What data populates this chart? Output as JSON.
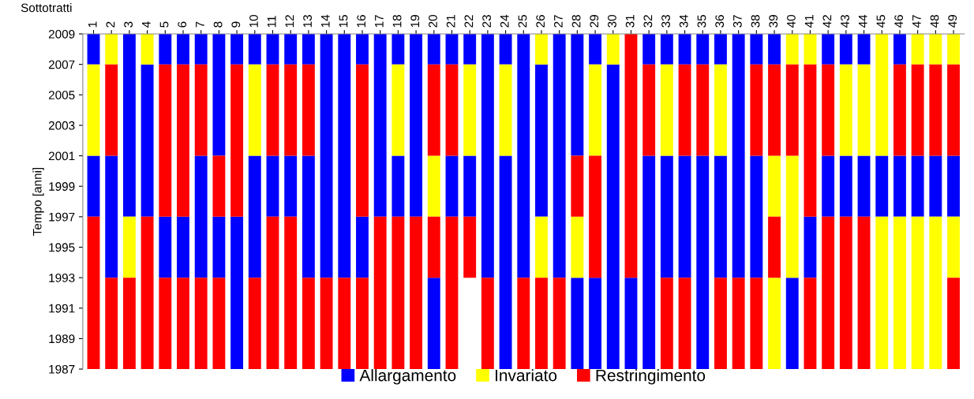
{
  "chart_data": {
    "type": "bar",
    "xlabel": "Sottotratti",
    "ylabel": "Tempo [anni]",
    "categories": [
      "1",
      "2",
      "3",
      "4",
      "5",
      "6",
      "7",
      "8",
      "9",
      "10",
      "11",
      "12",
      "13",
      "14",
      "15",
      "16",
      "17",
      "18",
      "19",
      "20",
      "21",
      "22",
      "23",
      "24",
      "25",
      "26",
      "27",
      "28",
      "29",
      "30",
      "31",
      "32",
      "33",
      "34",
      "35",
      "36",
      "37",
      "38",
      "39",
      "40",
      "41",
      "42",
      "43",
      "44",
      "45",
      "46",
      "47",
      "48",
      "49"
    ],
    "ylim": [
      1987,
      2009
    ],
    "yticks": [
      1987,
      1989,
      1991,
      1993,
      1995,
      1997,
      1999,
      2001,
      2003,
      2005,
      2007,
      2009
    ],
    "legend": "bottom",
    "series": [
      {
        "name": "Allargamento",
        "color": "#0000ff",
        "x": [
          "1",
          "1",
          "2",
          "3",
          "4",
          "5",
          "5",
          "6",
          "6",
          "7",
          "7",
          "8",
          "8",
          "9",
          "9",
          "10",
          "10",
          "11",
          "11",
          "12",
          "12",
          "13",
          "13",
          "14",
          "15",
          "16",
          "16",
          "17",
          "18",
          "18",
          "19",
          "20",
          "20",
          "21",
          "21",
          "22",
          "22",
          "23",
          "24",
          "24",
          "25",
          "26",
          "27",
          "28",
          "28",
          "29",
          "29",
          "30",
          "31",
          "32",
          "32",
          "33",
          "33",
          "34",
          "34",
          "35",
          "35",
          "36",
          "36",
          "37",
          "38",
          "38",
          "39",
          "40",
          "41",
          "42",
          "42",
          "43",
          "43",
          "44",
          "44",
          "45",
          "46",
          "46",
          "47",
          "48",
          "49"
        ],
        "base": [
          1997,
          2007,
          1993,
          1997,
          1997,
          1993,
          2007,
          1993,
          2007,
          1993,
          2007,
          1993,
          2001,
          1987,
          2007,
          1993,
          2007,
          1997,
          2007,
          1997,
          2007,
          1993,
          2007,
          1993,
          1993,
          1993,
          2007,
          1997,
          1997,
          2007,
          1997,
          1987,
          2007,
          1997,
          2007,
          1997,
          2007,
          1993,
          1987,
          2007,
          1993,
          1997,
          1993,
          1987,
          2001,
          1987,
          2007,
          1987,
          1987,
          1987,
          2007,
          1993,
          2007,
          1993,
          2007,
          1987,
          2007,
          1993,
          2007,
          1993,
          1993,
          2007,
          2007,
          1987,
          1993,
          1997,
          2007,
          1997,
          2007,
          1997,
          2007,
          1997,
          1997,
          2007,
          1997,
          1997,
          1997
        ],
        "values": [
          4,
          2,
          8,
          12,
          10,
          4,
          2,
          4,
          2,
          8,
          2,
          4,
          8,
          10,
          2,
          8,
          2,
          4,
          2,
          4,
          2,
          8,
          2,
          16,
          16,
          4,
          2,
          12,
          4,
          2,
          12,
          6,
          2,
          4,
          2,
          4,
          2,
          16,
          14,
          2,
          16,
          10,
          16,
          6,
          8,
          6,
          2,
          20,
          6,
          14,
          2,
          8,
          2,
          8,
          2,
          14,
          2,
          8,
          2,
          16,
          8,
          2,
          2,
          6,
          4,
          4,
          2,
          4,
          2,
          4,
          2,
          4,
          4,
          2,
          4,
          4,
          4
        ]
      },
      {
        "name": "Invariato",
        "color": "#ffff00",
        "x": [
          "1",
          "2",
          "3",
          "4",
          "10",
          "18",
          "20",
          "22",
          "24",
          "26",
          "26",
          "28",
          "29",
          "30",
          "33",
          "36",
          "39",
          "39",
          "40",
          "40",
          "41",
          "43",
          "44",
          "45",
          "45",
          "46",
          "47",
          "47",
          "48",
          "48",
          "49",
          "49"
        ],
        "base": [
          2001,
          2007,
          1993,
          2007,
          2001,
          2001,
          1997,
          2001,
          2001,
          1993,
          2007,
          1993,
          2001,
          2007,
          2001,
          2001,
          1987,
          1997,
          1993,
          2007,
          2007,
          2001,
          2001,
          1987,
          2001,
          1987,
          1987,
          2007,
          1987,
          2007,
          1993,
          2007
        ],
        "values": [
          6,
          2,
          4,
          2,
          6,
          6,
          4,
          6,
          6,
          4,
          2,
          4,
          6,
          2,
          6,
          6,
          6,
          4,
          8,
          2,
          2,
          6,
          6,
          10,
          8,
          10,
          10,
          2,
          10,
          2,
          4,
          2
        ]
      },
      {
        "name": "Restringimento",
        "color": "#ff0000",
        "x": [
          "1",
          "2",
          "2",
          "3",
          "4",
          "5",
          "5",
          "6",
          "6",
          "7",
          "7",
          "8",
          "8",
          "9",
          "10",
          "11",
          "11",
          "12",
          "12",
          "13",
          "13",
          "14",
          "15",
          "16",
          "16",
          "17",
          "18",
          "19",
          "20",
          "20",
          "21",
          "21",
          "22",
          "23",
          "25",
          "26",
          "27",
          "28",
          "29",
          "31",
          "32",
          "33",
          "34",
          "34",
          "35",
          "36",
          "37",
          "38",
          "38",
          "39",
          "39",
          "40",
          "41",
          "41",
          "42",
          "42",
          "43",
          "44",
          "46",
          "47",
          "48",
          "49",
          "49"
        ],
        "base": [
          1987,
          1987,
          2001,
          1987,
          1987,
          1987,
          1997,
          1987,
          1997,
          1987,
          2001,
          1987,
          1997,
          1997,
          1987,
          1987,
          2001,
          1987,
          2001,
          1987,
          2001,
          1987,
          1987,
          1987,
          1997,
          1987,
          1987,
          1987,
          1993,
          2001,
          1987,
          2001,
          1993,
          1987,
          1987,
          1987,
          1987,
          1997,
          1993,
          1993,
          2001,
          1987,
          1987,
          2001,
          2001,
          1987,
          1987,
          1987,
          2001,
          1993,
          2001,
          2001,
          1987,
          1997,
          1987,
          2001,
          1987,
          1987,
          2001,
          2001,
          2001,
          1987,
          2001
        ],
        "values": [
          10,
          6,
          6,
          6,
          10,
          6,
          10,
          6,
          10,
          6,
          6,
          6,
          4,
          10,
          6,
          10,
          6,
          10,
          6,
          6,
          6,
          6,
          6,
          6,
          10,
          10,
          10,
          10,
          4,
          6,
          10,
          6,
          4,
          6,
          6,
          6,
          6,
          4,
          8,
          16,
          6,
          6,
          6,
          6,
          6,
          6,
          6,
          6,
          6,
          4,
          6,
          6,
          6,
          10,
          10,
          6,
          10,
          10,
          6,
          6,
          6,
          6,
          6
        ]
      }
    ]
  }
}
